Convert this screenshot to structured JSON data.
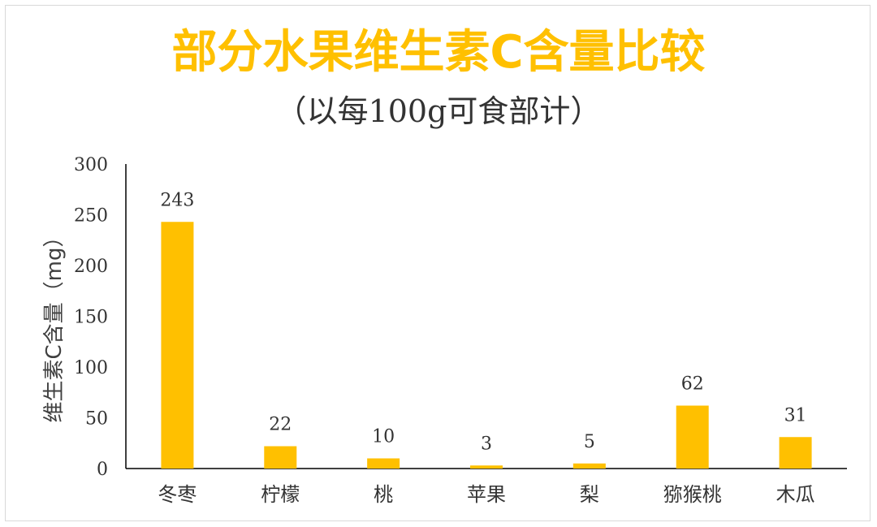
{
  "chart_data": {
    "type": "bar",
    "title": "部分水果维生素C含量比较",
    "subtitle": "（以每100g可食部计）",
    "ylabel": "维生素C含量（mg）",
    "xlabel": "",
    "categories": [
      "冬枣",
      "柠檬",
      "桃",
      "苹果",
      "梨",
      "猕猴桃",
      "木瓜"
    ],
    "values": [
      243,
      22,
      10,
      3,
      5,
      62,
      31
    ],
    "ylim": [
      0,
      300
    ],
    "yticks": [
      0,
      50,
      100,
      150,
      200,
      250,
      300
    ],
    "bar_color": "#ffc000",
    "title_color": "#ffc000",
    "grid": false,
    "legend": "none",
    "data_labels": true
  }
}
